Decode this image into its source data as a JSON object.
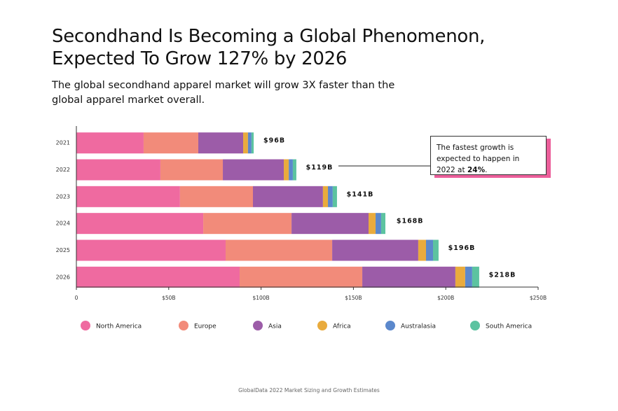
{
  "chart_data": {
    "type": "stacked-horizontal-bar",
    "title": "Secondhand Is Becoming a Global Phenomenon, Expected To Grow 127% by 2026",
    "subtitle": "The global secondhand apparel market will grow 3X faster than the global apparel market overall.",
    "categories": [
      "2021",
      "2022",
      "2023",
      "2024",
      "2025",
      "2026"
    ],
    "series": [
      {
        "name": "North America",
        "color": "#ef6aa0",
        "values": [
          36.4,
          45.5,
          56.1,
          68.7,
          80.8,
          88.4
        ]
      },
      {
        "name": "Europe",
        "color": "#f28b7a",
        "values": [
          29.6,
          33.8,
          39.5,
          47.8,
          57.7,
          66.4
        ]
      },
      {
        "name": "Asia",
        "color": "#9c5ca8",
        "values": [
          24.3,
          33,
          37.9,
          41.7,
          46.6,
          50.4
        ]
      },
      {
        "name": "Africa",
        "color": "#e9ab3d",
        "values": [
          2.6,
          2.7,
          2.7,
          3.8,
          4.2,
          5.3
        ]
      },
      {
        "name": "Australasia",
        "color": "#5b88cc",
        "values": [
          1.9,
          2.2,
          2.6,
          3,
          3.8,
          3.8
        ]
      },
      {
        "name": "South America",
        "color": "#5cc3a0",
        "values": [
          1.2,
          1.9,
          2.3,
          2.3,
          3,
          3.8
        ]
      }
    ],
    "totals": {
      "values": [
        96,
        119,
        141,
        168,
        196,
        218
      ],
      "value_labels": [
        "$96B",
        "$119B",
        "$141B",
        "$168B",
        "$196B",
        "$218B"
      ]
    },
    "xlim": [
      0,
      250
    ],
    "xticks": [
      0,
      {
        "value": 50,
        "label": "$50B"
      },
      {
        "value": 100,
        "label": "$100B"
      },
      {
        "value": 150,
        "label": "$150B"
      },
      {
        "value": 200,
        "label": "$200B"
      },
      {
        "value": 250,
        "label": "$250B"
      }
    ],
    "annotation": {
      "text": "The fastest growth is expected to happen in 2022 at ",
      "emphasis": "24%",
      "end": "."
    },
    "source": "GlobalData 2022 Market Sizing and Growth Estimates",
    "legend": "bottom"
  }
}
